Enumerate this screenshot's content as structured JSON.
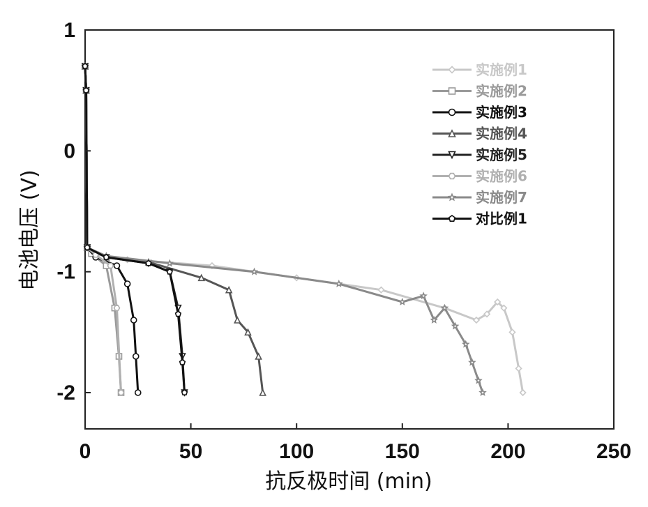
{
  "chart_data": {
    "type": "line",
    "xlabel": "抗反极时间 (min)",
    "ylabel": "电池电压 (V)",
    "xlim": [
      0,
      250
    ],
    "ylim": [
      -2.3,
      1.0
    ],
    "xticks": [
      "0",
      "50",
      "100",
      "150",
      "200",
      "250"
    ],
    "yticks": [
      "1",
      "0",
      "-1",
      "-2"
    ],
    "grid": false,
    "legend_position": "top-right",
    "series": [
      {
        "name": "实施例1",
        "color": "#c8c8c8",
        "marker": "diamond",
        "x": [
          0,
          0.5,
          1,
          3,
          20,
          60,
          100,
          140,
          170,
          185,
          190,
          195,
          198,
          202,
          205,
          207
        ],
        "y": [
          0.7,
          0.5,
          -0.8,
          -0.85,
          -0.9,
          -0.95,
          -1.05,
          -1.15,
          -1.3,
          -1.4,
          -1.35,
          -1.25,
          -1.3,
          -1.5,
          -1.8,
          -2.0
        ]
      },
      {
        "name": "实施例2",
        "color": "#9a9a9a",
        "marker": "square",
        "x": [
          0,
          0.5,
          1,
          3,
          10,
          14,
          16,
          17
        ],
        "y": [
          0.7,
          0.5,
          -0.8,
          -0.85,
          -0.95,
          -1.3,
          -1.7,
          -2.0
        ]
      },
      {
        "name": "实施例3",
        "color": "#111111",
        "marker": "circle",
        "x": [
          0,
          0.5,
          1,
          5,
          15,
          20,
          23,
          24,
          25
        ],
        "y": [
          0.7,
          0.5,
          -0.8,
          -0.88,
          -0.95,
          -1.1,
          -1.4,
          -1.7,
          -2.0
        ]
      },
      {
        "name": "实施例4",
        "color": "#555555",
        "marker": "triangle-up",
        "x": [
          0,
          0.5,
          1,
          10,
          30,
          55,
          68,
          72,
          77,
          82,
          84
        ],
        "y": [
          0.7,
          0.5,
          -0.8,
          -0.88,
          -0.92,
          -1.05,
          -1.15,
          -1.4,
          -1.5,
          -1.7,
          -2.0
        ]
      },
      {
        "name": "实施例5",
        "color": "#222222",
        "marker": "triangle-down",
        "x": [
          0,
          0.5,
          1,
          10,
          30,
          40,
          44,
          46,
          47
        ],
        "y": [
          0.7,
          0.5,
          -0.8,
          -0.88,
          -0.93,
          -1.0,
          -1.3,
          -1.7,
          -2.0
        ]
      },
      {
        "name": "实施例6",
        "color": "#b0b0b0",
        "marker": "hexagon",
        "x": [
          0,
          0.5,
          1,
          5,
          12,
          15,
          17
        ],
        "y": [
          0.7,
          0.5,
          -0.8,
          -0.86,
          -0.95,
          -1.3,
          -2.0
        ]
      },
      {
        "name": "实施例7",
        "color": "#8a8a8a",
        "marker": "star",
        "x": [
          0,
          0.5,
          1,
          10,
          40,
          80,
          120,
          150,
          160,
          165,
          170,
          175,
          180,
          183,
          186,
          188
        ],
        "y": [
          0.7,
          0.5,
          -0.8,
          -0.87,
          -0.93,
          -1.0,
          -1.1,
          -1.25,
          -1.2,
          -1.4,
          -1.3,
          -1.45,
          -1.6,
          -1.75,
          -1.9,
          -2.0
        ]
      },
      {
        "name": "对比例1",
        "color": "#111111",
        "marker": "pentagon",
        "x": [
          0,
          0.5,
          1,
          10,
          30,
          40,
          44,
          46,
          47
        ],
        "y": [
          0.7,
          0.5,
          -0.8,
          -0.88,
          -0.93,
          -1.0,
          -1.35,
          -1.75,
          -2.0
        ]
      }
    ]
  }
}
